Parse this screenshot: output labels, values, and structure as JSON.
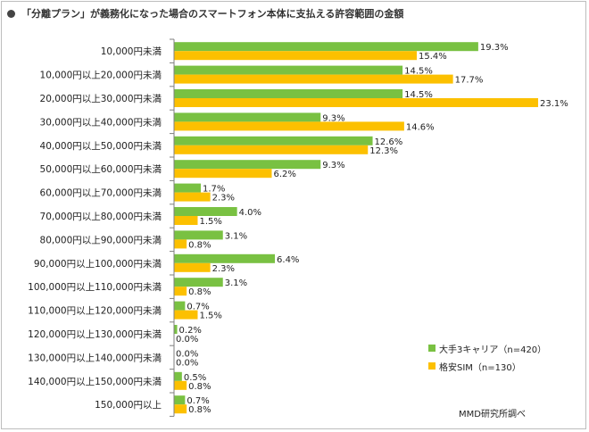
{
  "title": "「分離プラン」が義務化になった場合のスマートフォン本体に支払える許容範囲の金額",
  "source": "MMD研究所調べ",
  "colors": {
    "series1": "#79c142",
    "series2": "#fcc000",
    "axis": "#7f7f7f"
  },
  "chart_data": {
    "type": "bar",
    "orientation": "horizontal",
    "title": "「分離プラン」が義務化になった場合のスマートフォン本体に支払える許容範囲の金額",
    "categories": [
      "10,000円未満",
      "10,000円以上20,000円未満",
      "20,000円以上30,000円未満",
      "30,000円以上40,000円未満",
      "40,000円以上50,000円未満",
      "50,000円以上60,000円未満",
      "60,000円以上70,000円未満",
      "70,000円以上80,000円未満",
      "80,000円以上90,000円未満",
      "90,000円以上100,000円未満",
      "100,000円以上110,000円未満",
      "110,000円以上120,000円未満",
      "120,000円以上130,000円未満",
      "130,000円以上140,000円未満",
      "140,000円以上150,000円未満",
      "150,000円以上"
    ],
    "series": [
      {
        "name": "大手3キャリア（n=420）",
        "values": [
          19.3,
          14.5,
          14.5,
          9.3,
          12.6,
          9.3,
          1.7,
          4.0,
          3.1,
          6.4,
          3.1,
          0.7,
          0.2,
          0.0,
          0.5,
          0.7
        ]
      },
      {
        "name": "格安SIM（n=130）",
        "values": [
          15.4,
          17.7,
          23.1,
          14.6,
          12.3,
          6.2,
          2.3,
          1.5,
          0.8,
          2.3,
          0.8,
          1.5,
          0.0,
          0.0,
          0.8,
          0.8
        ]
      }
    ],
    "xlim": [
      0,
      25
    ],
    "value_suffix": "%",
    "legend_position": "bottom-right",
    "grid": false
  }
}
